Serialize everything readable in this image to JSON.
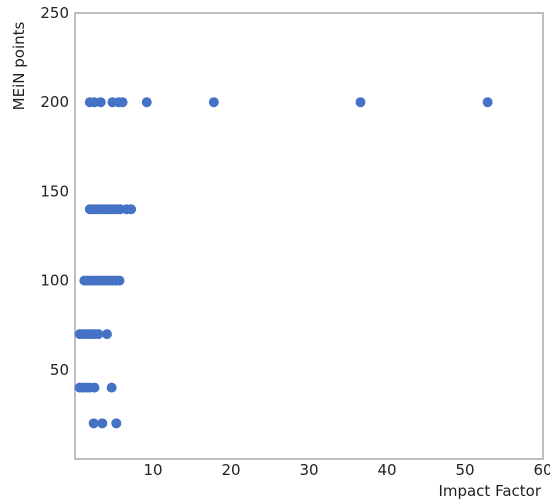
{
  "chart_data": {
    "type": "scatter",
    "title": "",
    "xlabel": "Impact Factor",
    "ylabel": "MEiN points",
    "xlim": [
      0,
      60
    ],
    "ylim": [
      0,
      250
    ],
    "xticks": [
      10,
      20,
      30,
      40,
      50,
      60
    ],
    "yticks": [
      50,
      100,
      150,
      200,
      250
    ],
    "grid": false,
    "legend": "none",
    "marker_color": "#4472c4",
    "frame_color": "#bfbfbf",
    "series": [
      {
        "points": [
          [
            1.9,
            200
          ],
          [
            2.5,
            200
          ],
          [
            3.3,
            200
          ],
          [
            4.8,
            200
          ],
          [
            5.6,
            200
          ],
          [
            6.1,
            200
          ],
          [
            9.2,
            200
          ],
          [
            17.8,
            200
          ],
          [
            36.6,
            200
          ],
          [
            52.9,
            200
          ],
          [
            1.9,
            140
          ],
          [
            2.3,
            140
          ],
          [
            2.7,
            140
          ],
          [
            3.2,
            140
          ],
          [
            3.7,
            140
          ],
          [
            4.1,
            140
          ],
          [
            4.5,
            140
          ],
          [
            4.9,
            140
          ],
          [
            5.3,
            140
          ],
          [
            5.8,
            140
          ],
          [
            6.6,
            140
          ],
          [
            7.2,
            140
          ],
          [
            1.2,
            100
          ],
          [
            1.6,
            100
          ],
          [
            2.0,
            100
          ],
          [
            2.4,
            100
          ],
          [
            2.8,
            100
          ],
          [
            3.2,
            100
          ],
          [
            3.6,
            100
          ],
          [
            4.0,
            100
          ],
          [
            4.4,
            100
          ],
          [
            4.8,
            100
          ],
          [
            5.3,
            100
          ],
          [
            5.7,
            100
          ],
          [
            0.6,
            70
          ],
          [
            1.0,
            70
          ],
          [
            1.4,
            70
          ],
          [
            1.8,
            70
          ],
          [
            2.2,
            70
          ],
          [
            2.6,
            70
          ],
          [
            3.0,
            70
          ],
          [
            4.1,
            70
          ],
          [
            0.6,
            40
          ],
          [
            1.0,
            40
          ],
          [
            1.5,
            40
          ],
          [
            1.9,
            40
          ],
          [
            2.5,
            40
          ],
          [
            4.7,
            40
          ],
          [
            2.4,
            20
          ],
          [
            3.5,
            20
          ],
          [
            5.3,
            20
          ]
        ]
      }
    ]
  }
}
